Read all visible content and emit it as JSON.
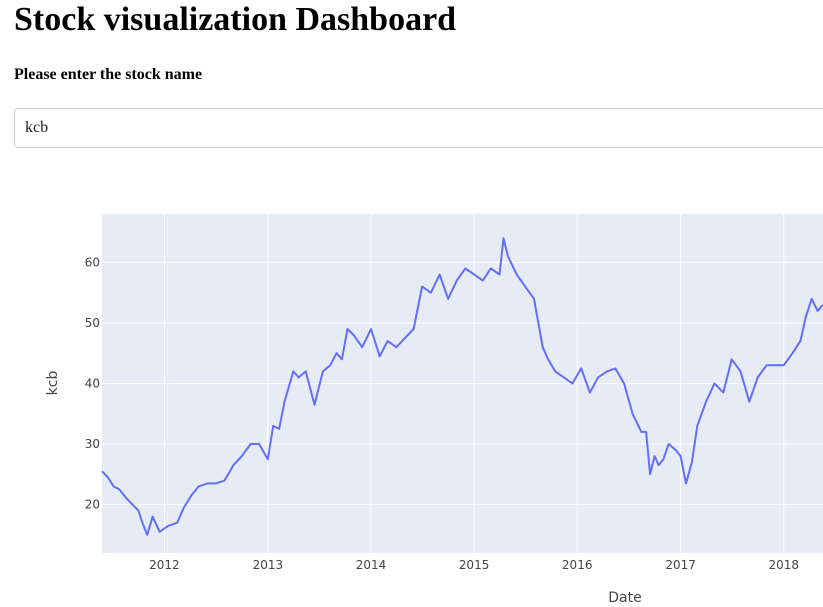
{
  "page": {
    "title": "Stock visualization Dashboard",
    "prompt": "Please enter the stock name"
  },
  "input": {
    "value": "kcb"
  },
  "chart_data": {
    "type": "line",
    "xlabel": "Date",
    "ylabel": "kcb",
    "x_ticks": [
      "2012",
      "2013",
      "2014",
      "2015",
      "2016",
      "2017",
      "2018"
    ],
    "y_ticks": [
      20,
      30,
      40,
      50,
      60
    ],
    "xlim": [
      "2011-05-25",
      "2018-05-20"
    ],
    "ylim": [
      12,
      68
    ],
    "grid": true,
    "colors": {
      "line": "#636efa",
      "plot_bg": "#e5ecf6",
      "grid": "#ffffff"
    },
    "series": [
      {
        "x": [
          "2011-05-25",
          "2011-06-15",
          "2011-07-05",
          "2011-07-25",
          "2011-08-20",
          "2011-09-10",
          "2011-10-01",
          "2011-10-15",
          "2011-11-01",
          "2011-11-20",
          "2011-12-15",
          "2012-01-15",
          "2012-02-15",
          "2012-03-10",
          "2012-04-05",
          "2012-05-01",
          "2012-06-01",
          "2012-07-01",
          "2012-08-01",
          "2012-09-01",
          "2012-10-01",
          "2012-11-01",
          "2012-12-01",
          "2013-01-01",
          "2013-01-20",
          "2013-02-10",
          "2013-03-01",
          "2013-04-01",
          "2013-04-20",
          "2013-05-15",
          "2013-06-15",
          "2013-07-15",
          "2013-08-10",
          "2013-09-01",
          "2013-09-20",
          "2013-10-10",
          "2013-11-01",
          "2013-12-01",
          "2014-01-01",
          "2014-02-01",
          "2014-03-01",
          "2014-04-01",
          "2014-05-01",
          "2014-06-01",
          "2014-07-01",
          "2014-08-01",
          "2014-09-01",
          "2014-10-01",
          "2014-11-01",
          "2014-12-01",
          "2015-01-01",
          "2015-02-01",
          "2015-03-01",
          "2015-04-01",
          "2015-04-15",
          "2015-05-01",
          "2015-06-01",
          "2015-07-01",
          "2015-08-01",
          "2015-09-01",
          "2015-09-20",
          "2015-10-15",
          "2015-11-15",
          "2015-12-15",
          "2016-01-15",
          "2016-02-15",
          "2016-03-15",
          "2016-04-15",
          "2016-05-15",
          "2016-06-15",
          "2016-07-15",
          "2016-08-15",
          "2016-09-01",
          "2016-09-15",
          "2016-10-01",
          "2016-10-15",
          "2016-11-01",
          "2016-11-20",
          "2016-12-15",
          "2017-01-01",
          "2017-01-20",
          "2017-02-10",
          "2017-03-01",
          "2017-04-01",
          "2017-05-01",
          "2017-06-01",
          "2017-07-01",
          "2017-08-01",
          "2017-09-01",
          "2017-10-01",
          "2017-11-01",
          "2017-12-01",
          "2018-01-01",
          "2018-02-01",
          "2018-03-01",
          "2018-03-20",
          "2018-04-10",
          "2018-05-01",
          "2018-05-20"
        ],
        "values": [
          25.5,
          24.5,
          23,
          22.5,
          21,
          20,
          19,
          17,
          15,
          18,
          15.5,
          16.5,
          17,
          19.5,
          21.5,
          23,
          23.5,
          23.5,
          24,
          26.5,
          28,
          30,
          30,
          27.5,
          33,
          32.5,
          37,
          42,
          41,
          42,
          36.5,
          42,
          43,
          45,
          44,
          49,
          48,
          46,
          49,
          44.5,
          47,
          46,
          47.5,
          49,
          56,
          55,
          58,
          54,
          57,
          59,
          58,
          57,
          59,
          58,
          64,
          61,
          58,
          56,
          54,
          46,
          44,
          42,
          41,
          40,
          42.5,
          38.5,
          41,
          42,
          42.5,
          40,
          35,
          32,
          32,
          25,
          28,
          26.5,
          27.5,
          30,
          29,
          28,
          23.5,
          27,
          33,
          37,
          40,
          38.5,
          44,
          42,
          37,
          41,
          43,
          43,
          43,
          45,
          47,
          51,
          54,
          52,
          53
        ]
      }
    ]
  }
}
